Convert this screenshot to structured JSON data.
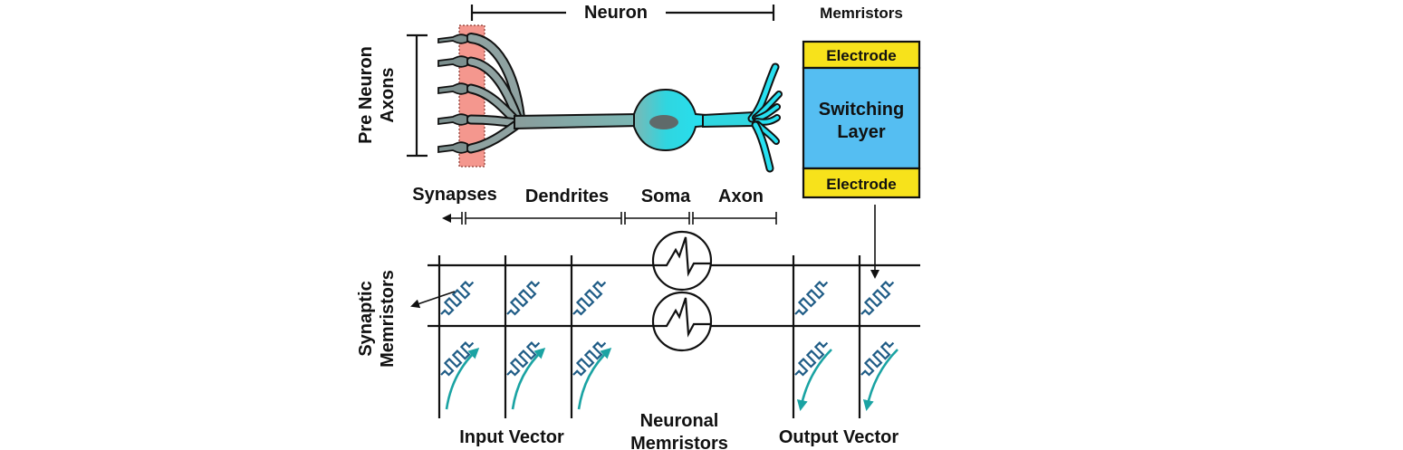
{
  "labels": {
    "neuron": "Neuron",
    "memristors": "Memristors",
    "pre_neuron_axons_line1": "Pre Neuron",
    "pre_neuron_axons_line2": "Axons",
    "synapses": "Synapses",
    "dendrites": "Dendrites",
    "soma": "Soma",
    "axon": "Axon",
    "electrode_top": "Electrode",
    "switching_layer_line1": "Switching",
    "switching_layer_line2": "Layer",
    "electrode_bottom": "Electrode",
    "synaptic_memristors_line1": "Synaptic",
    "synaptic_memristors_line2": "Memristors",
    "input_vector": "Input Vector",
    "neuronal_memristors_line1": "Neuronal",
    "neuronal_memristors_line2": "Memristors",
    "output_vector": "Output Vector"
  },
  "colors": {
    "electrode": "#f7e21b",
    "switching_layer": "#55bef2",
    "synapse_highlight": "#f4978e",
    "neuron_body": "#7ab8b5",
    "soma_cyan": "#2fd6e0",
    "axon_cyan": "#27e0f0",
    "nucleus": "#5f6a6a",
    "memristor_blue": "#1f5c86",
    "current_arrow_teal": "#1aa3a3"
  },
  "icons": [
    "memristor-zigzag-icon",
    "spike-waveform-icon",
    "curved-current-arrow-icon"
  ]
}
